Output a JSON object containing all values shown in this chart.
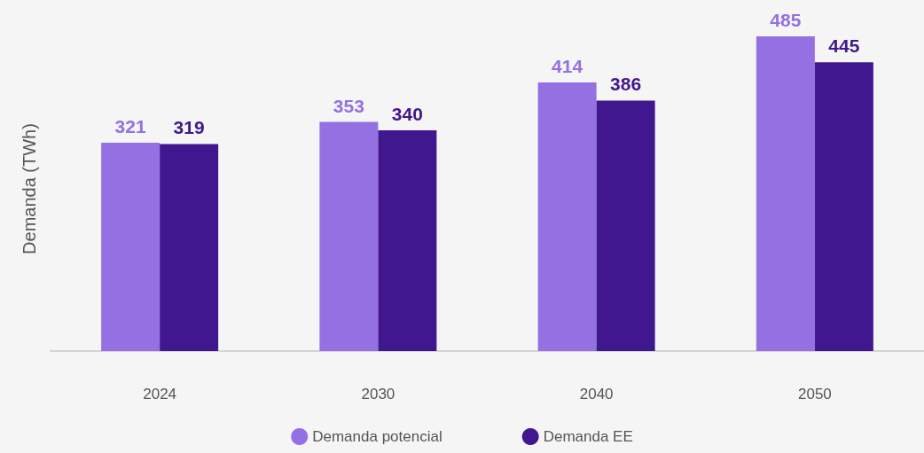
{
  "chart_data": {
    "type": "bar",
    "ylabel": "Demanda (TWh)",
    "categories": [
      "2024",
      "2030",
      "2040",
      "2050"
    ],
    "series": [
      {
        "name": "Demanda potencial",
        "color": "#9470e2",
        "values": [
          321,
          353,
          414,
          485
        ]
      },
      {
        "name": "Demanda EE",
        "color": "#41178f",
        "values": [
          319,
          340,
          386,
          445
        ]
      }
    ],
    "data_labels": true,
    "legend": "bottom",
    "grid": false,
    "tick_labels": "x"
  }
}
